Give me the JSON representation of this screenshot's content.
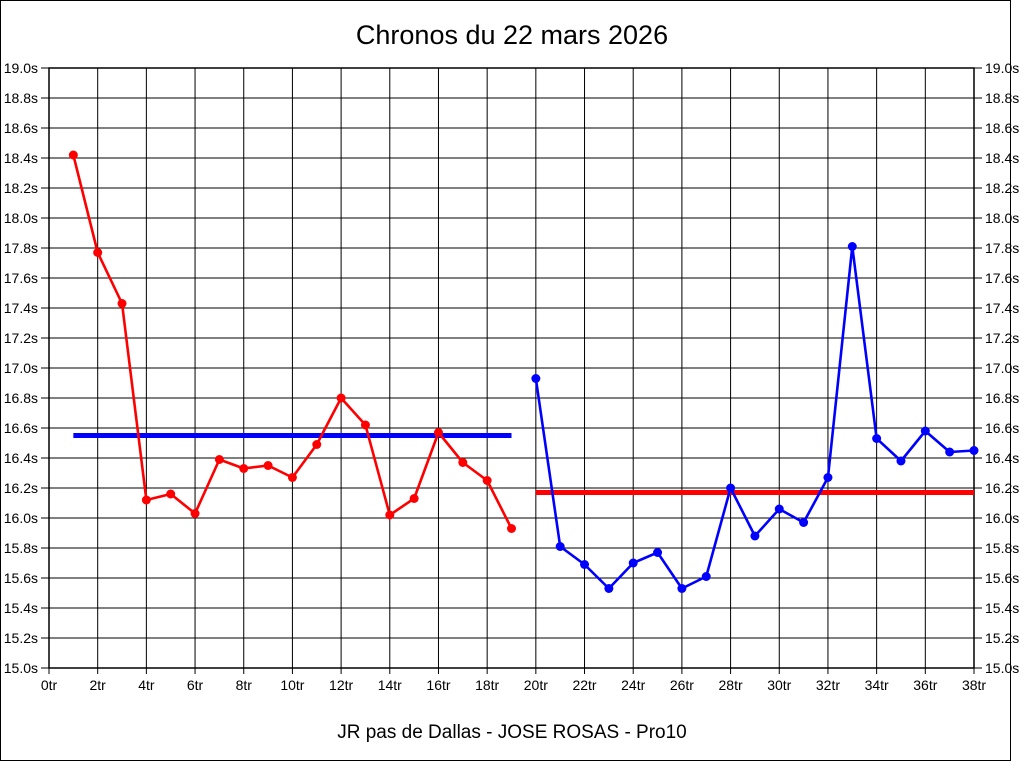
{
  "page": {
    "title": "Chronos du 22 mars 2026",
    "footer": "JR pas de Dallas - JOSE ROSAS - Pro10"
  },
  "chart_data": {
    "type": "line",
    "title": "Chronos du 22 mars 2026",
    "subtitle": "JR pas de Dallas - JOSE ROSAS - Pro10",
    "xlabel": "",
    "ylabel": "",
    "x_unit": "tr",
    "y_unit": "s",
    "xlim": [
      0,
      38
    ],
    "ylim": [
      15.0,
      19.0
    ],
    "x_tick_step": 2,
    "y_tick_step": 0.2,
    "grid": true,
    "legend": "none",
    "x_ticks": [
      "0tr",
      "2tr",
      "4tr",
      "6tr",
      "8tr",
      "10tr",
      "12tr",
      "14tr",
      "16tr",
      "18tr",
      "20tr",
      "22tr",
      "24tr",
      "26tr",
      "28tr",
      "30tr",
      "32tr",
      "34tr",
      "36tr",
      "38tr"
    ],
    "y_ticks": [
      "19.0s",
      "18.8s",
      "18.6s",
      "18.4s",
      "18.2s",
      "18.0s",
      "17.8s",
      "17.6s",
      "17.4s",
      "17.2s",
      "17.0s",
      "16.8s",
      "16.6s",
      "16.4s",
      "16.2s",
      "16.0s",
      "15.8s",
      "15.6s",
      "15.4s",
      "15.2s",
      "15.0s"
    ],
    "series": [
      {
        "name": "chronos-tours-1-19",
        "color": "#ff0000",
        "x": [
          1,
          2,
          3,
          4,
          5,
          6,
          7,
          8,
          9,
          10,
          11,
          12,
          13,
          14,
          15,
          16,
          17,
          18,
          19
        ],
        "values": [
          18.42,
          17.77,
          17.43,
          16.12,
          16.16,
          16.03,
          16.39,
          16.33,
          16.35,
          16.27,
          16.49,
          16.8,
          16.62,
          16.02,
          16.13,
          16.57,
          16.37,
          16.25,
          15.93
        ]
      },
      {
        "name": "chronos-tours-20-38",
        "color": "#0000ff",
        "x": [
          20,
          21,
          22,
          23,
          24,
          25,
          26,
          27,
          28,
          29,
          30,
          31,
          32,
          33,
          34,
          35,
          36,
          37,
          38
        ],
        "values": [
          16.93,
          15.81,
          15.69,
          15.53,
          15.7,
          15.77,
          15.53,
          15.61,
          16.2,
          15.88,
          16.06,
          15.97,
          16.27,
          17.81,
          16.53,
          16.38,
          16.58,
          16.44,
          16.45
        ]
      }
    ],
    "reference_lines": [
      {
        "name": "moyenne-serie-1",
        "color": "#0000ff",
        "value": 16.55,
        "x_start": 1,
        "x_end": 19
      },
      {
        "name": "moyenne-serie-2",
        "color": "#ff0000",
        "value": 16.17,
        "x_start": 20,
        "x_end": 38
      }
    ]
  }
}
